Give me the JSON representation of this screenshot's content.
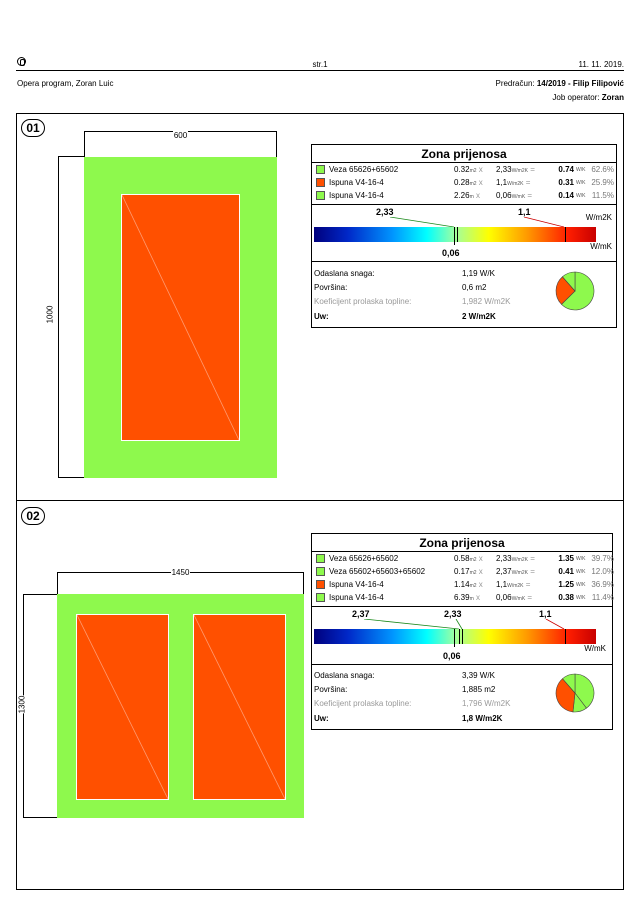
{
  "header": {
    "page": "str.1",
    "date": "11. 11. 2019.",
    "company": "Opera program, Zoran Luic",
    "quote_label": "Predračun:",
    "quote_value": "14/2019  - Filip Filipović",
    "operator_label": "Job operator:",
    "operator_value": "Zoran"
  },
  "legend_colors": {
    "green": "#8ef94d",
    "orange": "#ff5000"
  },
  "sections": [
    {
      "number": "01",
      "width_dim": "600",
      "height_dim": "1000",
      "title": "Zona prijenosa",
      "rows": [
        {
          "color": "#8ef94d",
          "label": "Veza 65626+65602",
          "len": "0.32",
          "len_unit": "m2",
          "u": "2,33",
          "u_unit": "W/m2K",
          "loss": "0.74",
          "loss_unit": "W/K",
          "pct": "62.6%"
        },
        {
          "color": "#ff5000",
          "label": "Ispuna V4-16-4",
          "len": "0.28",
          "len_unit": "m2",
          "u": "1,1",
          "u_unit": "W/m2K",
          "loss": "0.31",
          "loss_unit": "W/K",
          "pct": "25.9%"
        },
        {
          "color": "#8ef94d",
          "label": "Ispuna V4-16-4",
          "len": "2.26",
          "len_unit": "m",
          "u": "0,06",
          "u_unit": "W/mK",
          "loss": "0.14",
          "loss_unit": "W/K",
          "pct": "11.5%"
        }
      ],
      "scale": {
        "top_ticks": [
          "2,33",
          "1,1"
        ],
        "bottom_tick": "0,06",
        "unit_top": "W/m2K",
        "unit_bottom": "W/mK"
      },
      "info": [
        {
          "label": "Odaslana snaga:",
          "value": "1,19 W/K",
          "style": "normal"
        },
        {
          "label": "Površina:",
          "value": "0,6 m2",
          "style": "normal"
        },
        {
          "label": "Koeficijent prolaska topline:",
          "value": "1,982 W/m2K",
          "style": "grey"
        },
        {
          "label": "Uw:",
          "value": "2 W/m2K",
          "style": "bold"
        }
      ],
      "pie_percent": [
        62.6,
        25.9,
        11.5
      ]
    },
    {
      "number": "02",
      "width_dim": "1450",
      "height_dim": "1300",
      "title": "Zona prijenosa",
      "rows": [
        {
          "color": "#8ef94d",
          "label": "Veza 65626+65602",
          "len": "0.58",
          "len_unit": "m2",
          "u": "2,33",
          "u_unit": "W/m2K",
          "loss": "1.35",
          "loss_unit": "W/K",
          "pct": "39.7%"
        },
        {
          "color": "#8ef94d",
          "label": "Veza 65602+65603+65602",
          "len": "0.17",
          "len_unit": "m2",
          "u": "2,37",
          "u_unit": "W/m2K",
          "loss": "0.41",
          "loss_unit": "W/K",
          "pct": "12.0%"
        },
        {
          "color": "#ff5000",
          "label": "Ispuna V4-16-4",
          "len": "1.14",
          "len_unit": "m2",
          "u": "1,1",
          "u_unit": "W/m2K",
          "loss": "1.25",
          "loss_unit": "W/K",
          "pct": "36.9%"
        },
        {
          "color": "#8ef94d",
          "label": "Ispuna V4-16-4",
          "len": "6.39",
          "len_unit": "m",
          "u": "0,06",
          "u_unit": "W/mK",
          "loss": "0.38",
          "loss_unit": "W/K",
          "pct": "11.4%"
        }
      ],
      "scale": {
        "top_ticks": [
          "2,37",
          "2,33",
          "1,1"
        ],
        "bottom_tick": "0,06",
        "unit_top": "W/m2K",
        "unit_bottom": "W/mK"
      },
      "info": [
        {
          "label": "Odaslana snaga:",
          "value": "3,39 W/K",
          "style": "normal"
        },
        {
          "label": "Površina:",
          "value": "1,885 m2",
          "style": "normal"
        },
        {
          "label": "Koeficijent prolaska topline:",
          "value": "1,796 W/m2K",
          "style": "grey"
        },
        {
          "label": "Uw:",
          "value": "1,8 W/m2K",
          "style": "bold"
        }
      ],
      "pie_percent": [
        39.7,
        12.0,
        36.9,
        11.4
      ]
    }
  ]
}
